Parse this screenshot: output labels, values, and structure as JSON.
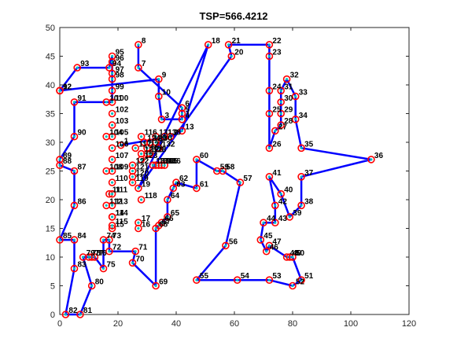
{
  "chart_data": {
    "type": "line",
    "title": "TSP=566.4212",
    "xlabel": "",
    "ylabel": "",
    "xlim": [
      0,
      120
    ],
    "ylim": [
      0,
      50
    ],
    "xticks": [
      0,
      20,
      40,
      60,
      80,
      100,
      120
    ],
    "yticks": [
      0,
      5,
      10,
      15,
      20,
      25,
      30,
      35,
      40,
      45,
      50
    ],
    "grid": false,
    "legend": "none",
    "colors": {
      "route": "#0000ff",
      "marker_edge": "#ff0000",
      "marker_fill": "#00c0c0",
      "axes": "#262626"
    },
    "cities": [
      {
        "id": "1",
        "x": 21,
        "y": 29.5
      },
      {
        "id": "2",
        "x": 38,
        "y": 31
      },
      {
        "id": "3",
        "x": 35,
        "y": 34
      },
      {
        "id": "4",
        "x": 42,
        "y": 34
      },
      {
        "id": "5",
        "x": 42,
        "y": 35
      },
      {
        "id": "6",
        "x": 42,
        "y": 36
      },
      {
        "id": "7",
        "x": 27,
        "y": 43
      },
      {
        "id": "8",
        "x": 27,
        "y": 47
      },
      {
        "id": "9",
        "x": 34,
        "y": 41
      },
      {
        "id": "10",
        "x": 34,
        "y": 38
      },
      {
        "id": "11",
        "x": 17,
        "y": 21
      },
      {
        "id": "12",
        "x": 0,
        "y": 39
      },
      {
        "id": "13",
        "x": 42,
        "y": 32
      },
      {
        "id": "14",
        "x": 18,
        "y": 17
      },
      {
        "id": "15",
        "x": 18,
        "y": 15
      },
      {
        "id": "16",
        "x": 27,
        "y": 15
      },
      {
        "id": "17",
        "x": 27,
        "y": 16
      },
      {
        "id": "18",
        "x": 51,
        "y": 47
      },
      {
        "id": "19",
        "x": 27,
        "y": 22
      },
      {
        "id": "20",
        "x": 59,
        "y": 45
      },
      {
        "id": "21",
        "x": 58,
        "y": 47
      },
      {
        "id": "22",
        "x": 72,
        "y": 47
      },
      {
        "id": "23",
        "x": 72,
        "y": 45
      },
      {
        "id": "24",
        "x": 72,
        "y": 39
      },
      {
        "id": "25",
        "x": 72,
        "y": 35
      },
      {
        "id": "26",
        "x": 72,
        "y": 29
      },
      {
        "id": "27",
        "x": 74,
        "y": 32
      },
      {
        "id": "28",
        "x": 76,
        "y": 33
      },
      {
        "id": "29",
        "x": 76,
        "y": 35
      },
      {
        "id": "30",
        "x": 76,
        "y": 37
      },
      {
        "id": "31",
        "x": 76,
        "y": 39
      },
      {
        "id": "32",
        "x": 78,
        "y": 41
      },
      {
        "id": "33",
        "x": 81,
        "y": 38
      },
      {
        "id": "34",
        "x": 81,
        "y": 34
      },
      {
        "id": "35",
        "x": 83,
        "y": 29
      },
      {
        "id": "36",
        "x": 107,
        "y": 27
      },
      {
        "id": "37",
        "x": 83,
        "y": 24
      },
      {
        "id": "38",
        "x": 83,
        "y": 19
      },
      {
        "id": "39",
        "x": 79,
        "y": 17
      },
      {
        "id": "40",
        "x": 76,
        "y": 21
      },
      {
        "id": "41",
        "x": 72,
        "y": 24
      },
      {
        "id": "42",
        "x": 74,
        "y": 19
      },
      {
        "id": "43",
        "x": 74,
        "y": 16
      },
      {
        "id": "44",
        "x": 70,
        "y": 16
      },
      {
        "id": "45",
        "x": 69,
        "y": 13
      },
      {
        "id": "46",
        "x": 71,
        "y": 11
      },
      {
        "id": "47",
        "x": 72,
        "y": 12
      },
      {
        "id": "48",
        "x": 78,
        "y": 10
      },
      {
        "id": "49",
        "x": 79,
        "y": 10
      },
      {
        "id": "50",
        "x": 80,
        "y": 10
      },
      {
        "id": "51",
        "x": 83,
        "y": 6
      },
      {
        "id": "52",
        "x": 80,
        "y": 5
      },
      {
        "id": "53",
        "x": 72,
        "y": 6
      },
      {
        "id": "54",
        "x": 61,
        "y": 6
      },
      {
        "id": "55",
        "x": 47,
        "y": 6
      },
      {
        "id": "56",
        "x": 57,
        "y": 12
      },
      {
        "id": "57",
        "x": 62,
        "y": 23
      },
      {
        "id": "58",
        "x": 56,
        "y": 25
      },
      {
        "id": "59",
        "x": 54,
        "y": 25
      },
      {
        "id": "60",
        "x": 47,
        "y": 27
      },
      {
        "id": "61",
        "x": 47,
        "y": 22
      },
      {
        "id": "62",
        "x": 40,
        "y": 23
      },
      {
        "id": "63",
        "x": 39,
        "y": 22
      },
      {
        "id": "64",
        "x": 37,
        "y": 20
      },
      {
        "id": "65",
        "x": 37,
        "y": 17
      },
      {
        "id": "66",
        "x": 35,
        "y": 16
      },
      {
        "id": "67",
        "x": 34,
        "y": 15.5
      },
      {
        "id": "68",
        "x": 33,
        "y": 15
      },
      {
        "id": "69",
        "x": 33,
        "y": 5
      },
      {
        "id": "70",
        "x": 25,
        "y": 9
      },
      {
        "id": "71",
        "x": 26,
        "y": 11
      },
      {
        "id": "72",
        "x": 17,
        "y": 11
      },
      {
        "id": "73",
        "x": 17,
        "y": 13
      },
      {
        "id": "74",
        "x": 15,
        "y": 13
      },
      {
        "id": "75",
        "x": 15,
        "y": 8
      },
      {
        "id": "76",
        "x": 12,
        "y": 10
      },
      {
        "id": "77",
        "x": 11,
        "y": 10
      },
      {
        "id": "78",
        "x": 10,
        "y": 10
      },
      {
        "id": "79",
        "x": 8,
        "y": 10
      },
      {
        "id": "80",
        "x": 11,
        "y": 5
      },
      {
        "id": "81",
        "x": 7,
        "y": 0
      },
      {
        "id": "82",
        "x": 2,
        "y": 0
      },
      {
        "id": "83",
        "x": 5,
        "y": 8
      },
      {
        "id": "84",
        "x": 5,
        "y": 13
      },
      {
        "id": "85",
        "x": 0,
        "y": 13
      },
      {
        "id": "86",
        "x": 5,
        "y": 19
      },
      {
        "id": "87",
        "x": 5,
        "y": 25
      },
      {
        "id": "88",
        "x": 0,
        "y": 26
      },
      {
        "id": "89",
        "x": 0,
        "y": 27
      },
      {
        "id": "90",
        "x": 5,
        "y": 31
      },
      {
        "id": "91",
        "x": 5,
        "y": 37
      },
      {
        "id": "92",
        "x": 0,
        "y": 39
      },
      {
        "id": "93",
        "x": 6,
        "y": 43
      },
      {
        "id": "94",
        "x": 17,
        "y": 43
      },
      {
        "id": "95",
        "x": 18,
        "y": 45
      },
      {
        "id": "96",
        "x": 18,
        "y": 44
      },
      {
        "id": "97",
        "x": 18,
        "y": 42
      },
      {
        "id": "98",
        "x": 18,
        "y": 41
      },
      {
        "id": "99",
        "x": 18,
        "y": 39
      },
      {
        "id": "100",
        "x": 18,
        "y": 37
      },
      {
        "id": "101",
        "x": 16,
        "y": 37
      },
      {
        "id": "102",
        "x": 18,
        "y": 35
      },
      {
        "id": "103",
        "x": 18,
        "y": 33
      },
      {
        "id": "104",
        "x": 16,
        "y": 31
      },
      {
        "id": "105",
        "x": 18,
        "y": 31
      },
      {
        "id": "106",
        "x": 18,
        "y": 29
      },
      {
        "id": "107",
        "x": 18,
        "y": 27
      },
      {
        "id": "108",
        "x": 16,
        "y": 25
      },
      {
        "id": "109",
        "x": 18,
        "y": 25
      },
      {
        "id": "110",
        "x": 18,
        "y": 23
      },
      {
        "id": "111",
        "x": 18,
        "y": 21
      },
      {
        "id": "112",
        "x": 16,
        "y": 19
      },
      {
        "id": "113",
        "x": 18,
        "y": 19
      },
      {
        "id": "114",
        "x": 18,
        "y": 17
      },
      {
        "id": "115",
        "x": 18,
        "y": 15.5
      },
      {
        "id": "116",
        "x": 28,
        "y": 31
      },
      {
        "id": "117",
        "x": 26,
        "y": 29
      },
      {
        "id": "118",
        "x": 28,
        "y": 20
      },
      {
        "id": "119",
        "x": 25,
        "y": 23
      },
      {
        "id": "120",
        "x": 25,
        "y": 24
      },
      {
        "id": "121",
        "x": 25,
        "y": 25
      },
      {
        "id": "122",
        "x": 25,
        "y": 26
      },
      {
        "id": "123",
        "x": 28,
        "y": 27
      },
      {
        "id": "124",
        "x": 29,
        "y": 30
      },
      {
        "id": "125",
        "x": 28,
        "y": 28
      },
      {
        "id": "126",
        "x": 30,
        "y": 28
      },
      {
        "id": "127",
        "x": 30,
        "y": 29
      },
      {
        "id": "128",
        "x": 31,
        "y": 28
      },
      {
        "id": "129",
        "x": 31,
        "y": 30
      },
      {
        "id": "130",
        "x": 33,
        "y": 30
      },
      {
        "id": "131",
        "x": 33,
        "y": 31
      },
      {
        "id": "132",
        "x": 34,
        "y": 29
      },
      {
        "id": "133",
        "x": 34,
        "y": 26
      },
      {
        "id": "134",
        "x": 33,
        "y": 26
      },
      {
        "id": "135",
        "x": 35,
        "y": 26
      },
      {
        "id": "136",
        "x": 36,
        "y": 26
      },
      {
        "id": "137",
        "x": 32,
        "y": 26
      },
      {
        "id": "138",
        "x": 36,
        "y": 31
      }
    ],
    "route_labels": [
      "1",
      "117",
      "123",
      "122",
      "121",
      "120",
      "119",
      "118",
      "17",
      "16",
      "15",
      "14",
      "13",
      "11",
      "10",
      "19",
      "22",
      "12",
      "92",
      "12"
    ]
  }
}
